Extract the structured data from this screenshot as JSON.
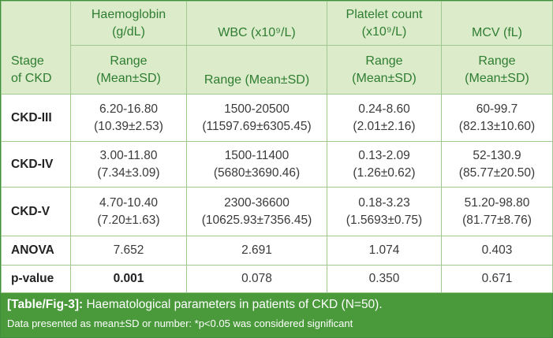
{
  "header": {
    "stage_label": [
      "Stage",
      "of CKD"
    ],
    "columns": [
      {
        "name": [
          "Haemoglobin",
          "(g/dL)"
        ],
        "sub": [
          "Range",
          "(Mean±SD)"
        ]
      },
      {
        "name": [
          "WBC (x10⁹/L)"
        ],
        "sub": [
          "Range (Mean±SD)"
        ]
      },
      {
        "name": [
          "Platelet count",
          "(x10⁹/L)"
        ],
        "sub": [
          "Range",
          "(Mean±SD)"
        ]
      },
      {
        "name": [
          "MCV (fL)"
        ],
        "sub": [
          "Range",
          "(Mean±SD)"
        ]
      }
    ]
  },
  "rows": [
    {
      "label": "CKD-III",
      "cells": [
        [
          "6.20-16.80",
          "(10.39±2.53)"
        ],
        [
          "1500-20500",
          "(11597.69±6305.45)"
        ],
        [
          "0.24-8.60",
          "(2.01±2.16)"
        ],
        [
          "60-99.7",
          "(82.13±10.60)"
        ]
      ]
    },
    {
      "label": "CKD-IV",
      "cells": [
        [
          "3.00-11.80",
          "(7.34±3.09)"
        ],
        [
          "1500-11400",
          "(5680±3690.46)"
        ],
        [
          "0.13-2.09",
          "(1.26±0.62)"
        ],
        [
          "52-130.9",
          "(85.77±20.50)"
        ]
      ]
    },
    {
      "label": "CKD-V",
      "cells": [
        [
          "4.70-10.40",
          "(7.20±1.63)"
        ],
        [
          "2300-36600",
          "(10625.93±7356.45)"
        ],
        [
          "0.18-3.23",
          "(1.5693±0.75)"
        ],
        [
          "51.20-98.80",
          "(81.77±8.76)"
        ]
      ]
    },
    {
      "label": "ANOVA",
      "cells": [
        [
          "7.652"
        ],
        [
          "2.691"
        ],
        [
          "1.074"
        ],
        [
          "0.403"
        ]
      ]
    },
    {
      "label": "p-value",
      "cells": [
        [
          "0.001"
        ],
        [
          "0.078"
        ],
        [
          "0.350"
        ],
        [
          "0.671"
        ]
      ]
    }
  ],
  "caption": {
    "tag": "[Table/Fig-3]:",
    "title": " Haematological parameters in patients of CKD (N=50).",
    "note": "Data presented as mean±SD or number: *p<0.05 was considered significant"
  }
}
